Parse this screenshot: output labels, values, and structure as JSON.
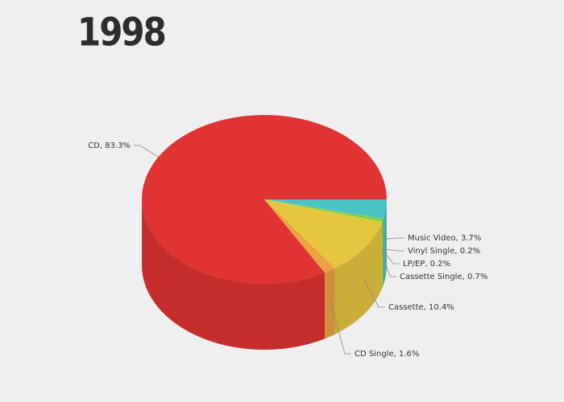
{
  "chart_data": {
    "type": "pie3d",
    "title": "1998",
    "values": [
      3.7,
      0.2,
      0.2,
      0.7,
      10.4,
      1.6,
      83.3
    ],
    "value_labels": [
      "Music Video, 3.7%",
      "Vinyl Single, 0.2%",
      "LP/EP, 0.2%",
      "Cassette Single, 0.7%",
      "Cassette, 10.4%",
      "CD Single, 1.6%",
      "CD, 83.3%"
    ],
    "colors": [
      "#4cc3c3",
      "#9ad64a",
      "#3cb94c",
      "#c5d43a",
      "#e6c63e",
      "#eea143",
      "#e03333"
    ]
  }
}
